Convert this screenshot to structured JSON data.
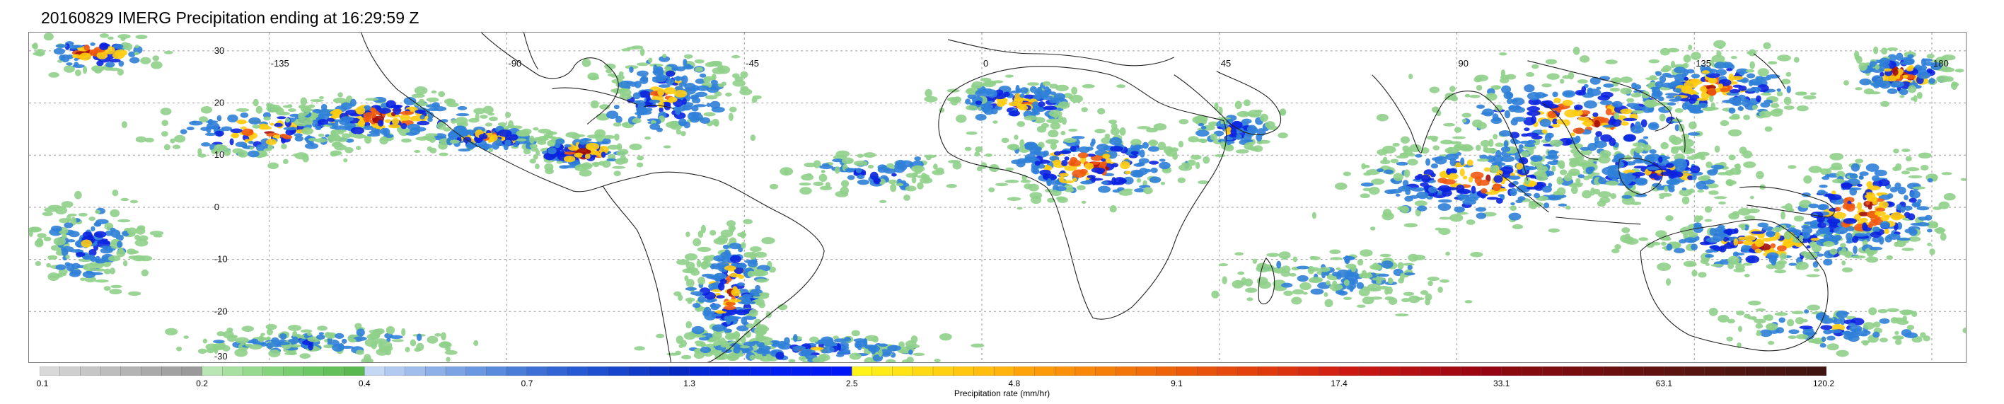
{
  "title": "20160829 IMERG Precipitation ending at 16:29:59 Z",
  "map": {
    "longitude_labels": [
      "-135",
      "-90",
      "-45",
      "0",
      "45",
      "90",
      "135",
      "180"
    ],
    "latitude_labels": [
      "30",
      "20",
      "10",
      "0",
      "-10",
      "-20",
      "-30"
    ],
    "gridlines": true,
    "coastlines": true
  },
  "colorbar": {
    "title": "Precipitation rate (mm/hr)",
    "tick_labels": [
      "0.1",
      "0.2",
      "0.4",
      "0.7",
      "1.3",
      "2.5",
      "4.8",
      "9.1",
      "17.4",
      "33.1",
      "63.1",
      "120.2"
    ],
    "segments_per_group": 8,
    "groups": [
      {
        "range": "0.1-0.2",
        "colors": [
          "#d9d9d9",
          "#cfcfcf",
          "#c6c6c6",
          "#bdbdbd",
          "#b4b4b4",
          "#aaaaaa",
          "#a2a2a2",
          "#9a9a9a"
        ]
      },
      {
        "range": "0.2-0.4",
        "colors": [
          "#b9e6b4",
          "#a8e0a1",
          "#97da8f",
          "#86d37d",
          "#79cd70",
          "#6cc765",
          "#63c05a",
          "#59b850"
        ]
      },
      {
        "range": "0.4-0.7",
        "colors": [
          "#c4d7f3",
          "#b2caf0",
          "#a0bdec",
          "#8eb0e8",
          "#7ca3e4",
          "#6b97e0",
          "#5a8adc",
          "#497dd8"
        ]
      },
      {
        "range": "0.7-1.3",
        "colors": [
          "#3d6fd6",
          "#3264d4",
          "#2759d2",
          "#1e4fd0",
          "#1745cc",
          "#103bc8",
          "#0a32c4",
          "#0529c0"
        ]
      },
      {
        "range": "1.3-2.5",
        "colors": [
          "#0024d6",
          "#0022dd",
          "#0020e4",
          "#001eeb",
          "#001cf0",
          "#001af2",
          "#0018f4",
          "#0016f6"
        ]
      },
      {
        "range": "2.5-4.8",
        "colors": [
          "#fff31a",
          "#ffeb18",
          "#ffe316",
          "#ffda14",
          "#ffd112",
          "#ffc710",
          "#ffbd0e",
          "#ffb30c"
        ]
      },
      {
        "range": "4.8-9.1",
        "colors": [
          "#ffa30a",
          "#fd9a0a",
          "#fb910a",
          "#f9880a",
          "#f67f0a",
          "#f3760a",
          "#f06d0a",
          "#ed640a"
        ]
      },
      {
        "range": "9.1-17.4",
        "colors": [
          "#eb5a0a",
          "#e9520b",
          "#e64a0c",
          "#e3420d",
          "#df3a0e",
          "#db320f",
          "#d72a10",
          "#d32211"
        ]
      },
      {
        "range": "17.4-33.1",
        "colors": [
          "#cc1a12",
          "#c41612",
          "#bc1212",
          "#b40f12",
          "#ac0c12",
          "#a40912",
          "#9c0612",
          "#940412"
        ]
      },
      {
        "range": "33.1-63.1",
        "colors": [
          "#8a0a10",
          "#840b10",
          "#7e0c10",
          "#780d10",
          "#720e10",
          "#6c0f10",
          "#661010",
          "#601110"
        ]
      },
      {
        "range": "63.1-120.2",
        "colors": [
          "#5c1410",
          "#581410",
          "#541410",
          "#501410",
          "#4c1410",
          "#481410",
          "#441410",
          "#401410"
        ]
      }
    ]
  },
  "legend_colors": {
    "light": "#8fd08a",
    "moderate": "#2f7fd8",
    "heavy": "#0a22e0",
    "intense": "#ffcc10",
    "very_intense": "#ef5a10",
    "extreme": "#a01010"
  }
}
